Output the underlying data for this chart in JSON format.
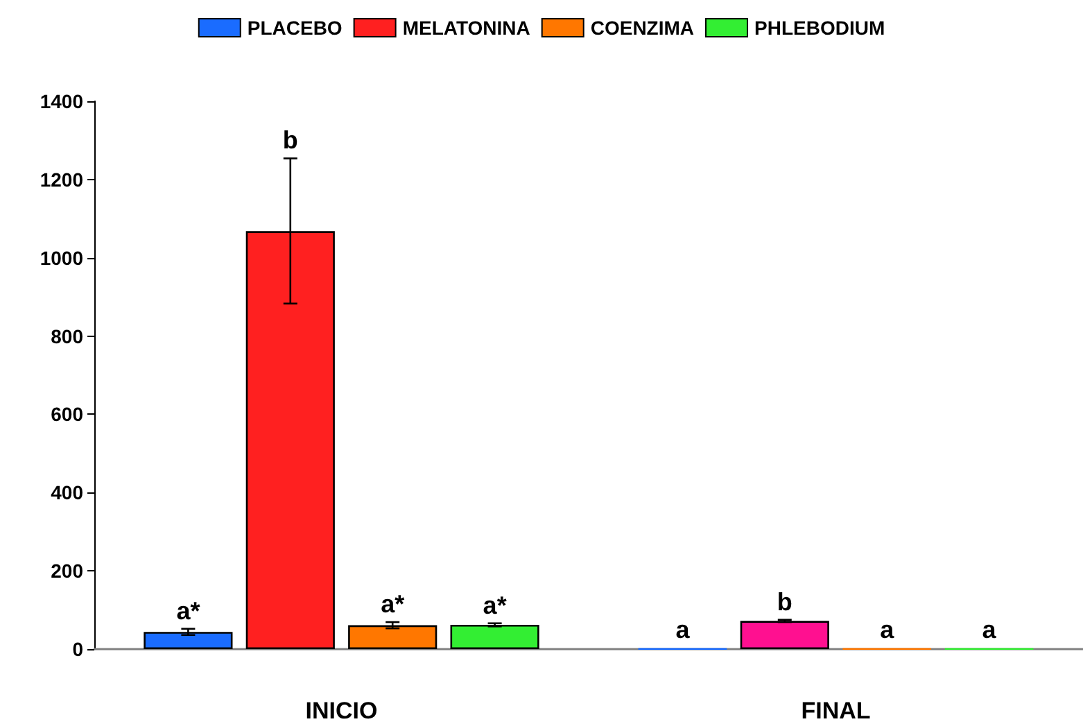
{
  "chart_data": {
    "type": "bar",
    "categories": [
      "INICIO",
      "FINAL"
    ],
    "series": [
      {
        "name": "PLACEBO",
        "color": "#1a6cff",
        "values": [
          44,
          1
        ],
        "errors": [
          8,
          null
        ],
        "value_labels": [
          "a*",
          "a"
        ]
      },
      {
        "name": "MELATONINA",
        "color": "#ff2020",
        "colors": [
          "#ff2020",
          "#ff1090"
        ],
        "values": [
          1068,
          72
        ],
        "errors": [
          [
            883,
            1254
          ],
          3
        ],
        "value_labels": [
          "b",
          "b"
        ]
      },
      {
        "name": "COENZIMA",
        "color": "#ff7700",
        "values": [
          61,
          1
        ],
        "errors": [
          8,
          null
        ],
        "value_labels": [
          "a*",
          "a"
        ]
      },
      {
        "name": "PHLEBODIUM",
        "color": "#33ee33",
        "values": [
          62,
          1
        ],
        "errors": [
          4,
          null
        ],
        "value_labels": [
          "a*",
          "a"
        ]
      }
    ],
    "ylim": [
      0,
      1400
    ],
    "yticks": [
      0,
      200,
      400,
      600,
      800,
      1000,
      1200,
      1400
    ],
    "grid": false,
    "legend": "top"
  }
}
